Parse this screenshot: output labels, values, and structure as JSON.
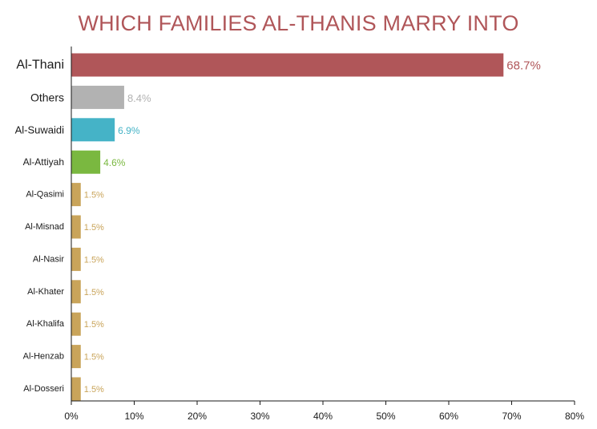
{
  "chart_data": {
    "type": "bar",
    "orientation": "horizontal",
    "title": "WHICH FAMILIES AL-THANIS MARRY INTO",
    "categories": [
      "Al-Thani",
      "Others",
      "Al-Suwaidi",
      "Al-Attiyah",
      "Al-Qasimi",
      "Al-Misnad",
      "Al-Nasir",
      "Al-Khater",
      "Al-Khalifa",
      "Al-Henzab",
      "Al-Dosseri"
    ],
    "values": [
      68.7,
      8.4,
      6.9,
      4.6,
      1.5,
      1.5,
      1.5,
      1.5,
      1.5,
      1.5,
      1.5
    ],
    "value_labels": [
      "68.7%",
      "8.4%",
      "6.9%",
      "4.6%",
      "1.5%",
      "1.5%",
      "1.5%",
      "1.5%",
      "1.5%",
      "1.5%",
      "1.5%"
    ],
    "colors": [
      "#b05659",
      "#b2b2b2",
      "#45b3c7",
      "#7ab840",
      "#c9a45a",
      "#c9a45a",
      "#c9a45a",
      "#c9a45a",
      "#c9a45a",
      "#c9a45a",
      "#c9a45a"
    ],
    "xlim": [
      0,
      80
    ],
    "x_ticks": [
      0,
      10,
      20,
      30,
      40,
      50,
      60,
      70,
      80
    ],
    "x_tick_labels": [
      "0%",
      "10%",
      "20%",
      "30%",
      "40%",
      "50%",
      "60%",
      "70%",
      "80%"
    ],
    "grid": false,
    "legend": "none"
  }
}
